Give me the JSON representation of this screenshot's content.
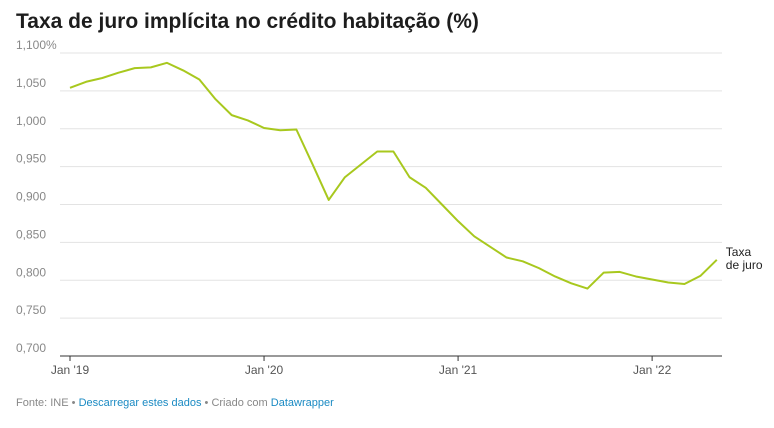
{
  "chart_data": {
    "type": "line",
    "title": "Taxa de juro implícita no crédito habitação (%)",
    "categories": [
      "Jan '19",
      null,
      null,
      null,
      null,
      null,
      null,
      null,
      null,
      null,
      null,
      null,
      "Jan '20",
      null,
      null,
      null,
      null,
      null,
      null,
      null,
      null,
      null,
      null,
      null,
      "Jan '21",
      null,
      null,
      null,
      null,
      null,
      null,
      null,
      null,
      null,
      null,
      null,
      "Jan '22",
      null,
      null,
      null,
      null
    ],
    "series": [
      {
        "name": "Taxa de juro",
        "color": "#a8c81e",
        "values": [
          1.054,
          1.062,
          1.067,
          1.074,
          1.08,
          1.081,
          1.087,
          1.077,
          1.065,
          1.039,
          1.018,
          1.011,
          1.001,
          0.998,
          0.999,
          0.953,
          0.906,
          0.936,
          0.953,
          0.97,
          0.97,
          0.936,
          0.922,
          0.9,
          0.878,
          0.858,
          0.844,
          0.83,
          0.825,
          0.816,
          0.805,
          0.796,
          0.789,
          0.81,
          0.811,
          0.805,
          0.801,
          0.797,
          0.795,
          0.806,
          0.827
        ]
      }
    ],
    "ylim": [
      0.7,
      1.1
    ],
    "yticks": [
      {
        "value": 0.7,
        "label": "0,700"
      },
      {
        "value": 0.75,
        "label": "0,750"
      },
      {
        "value": 0.8,
        "label": "0,800"
      },
      {
        "value": 0.85,
        "label": "0,850"
      },
      {
        "value": 0.9,
        "label": "0,900"
      },
      {
        "value": 0.95,
        "label": "0,950"
      },
      {
        "value": 1.0,
        "label": "1,000"
      },
      {
        "value": 1.05,
        "label": "1,050"
      },
      {
        "value": 1.1,
        "label": "1,100%"
      }
    ],
    "grid": true
  },
  "footer": {
    "source": "Fonte: INE",
    "sep1": "•",
    "download": "Descarregar estes dados",
    "sep2": "•",
    "created": "Criado com",
    "tool": "Datawrapper"
  }
}
